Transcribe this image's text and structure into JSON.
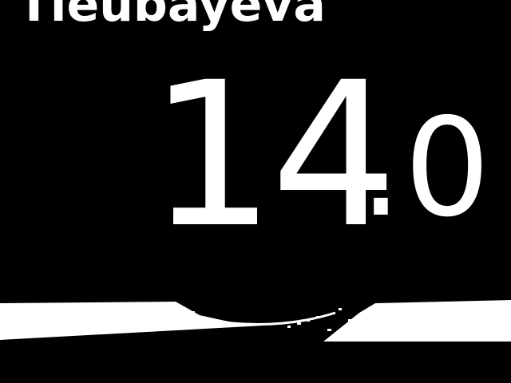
{
  "athlete": {
    "name": "Tleubayeva"
  },
  "score": {
    "integer_part": "14",
    "fraction_part": ".0"
  },
  "colors": {
    "background": "#000000",
    "foreground": "#ffffff"
  }
}
